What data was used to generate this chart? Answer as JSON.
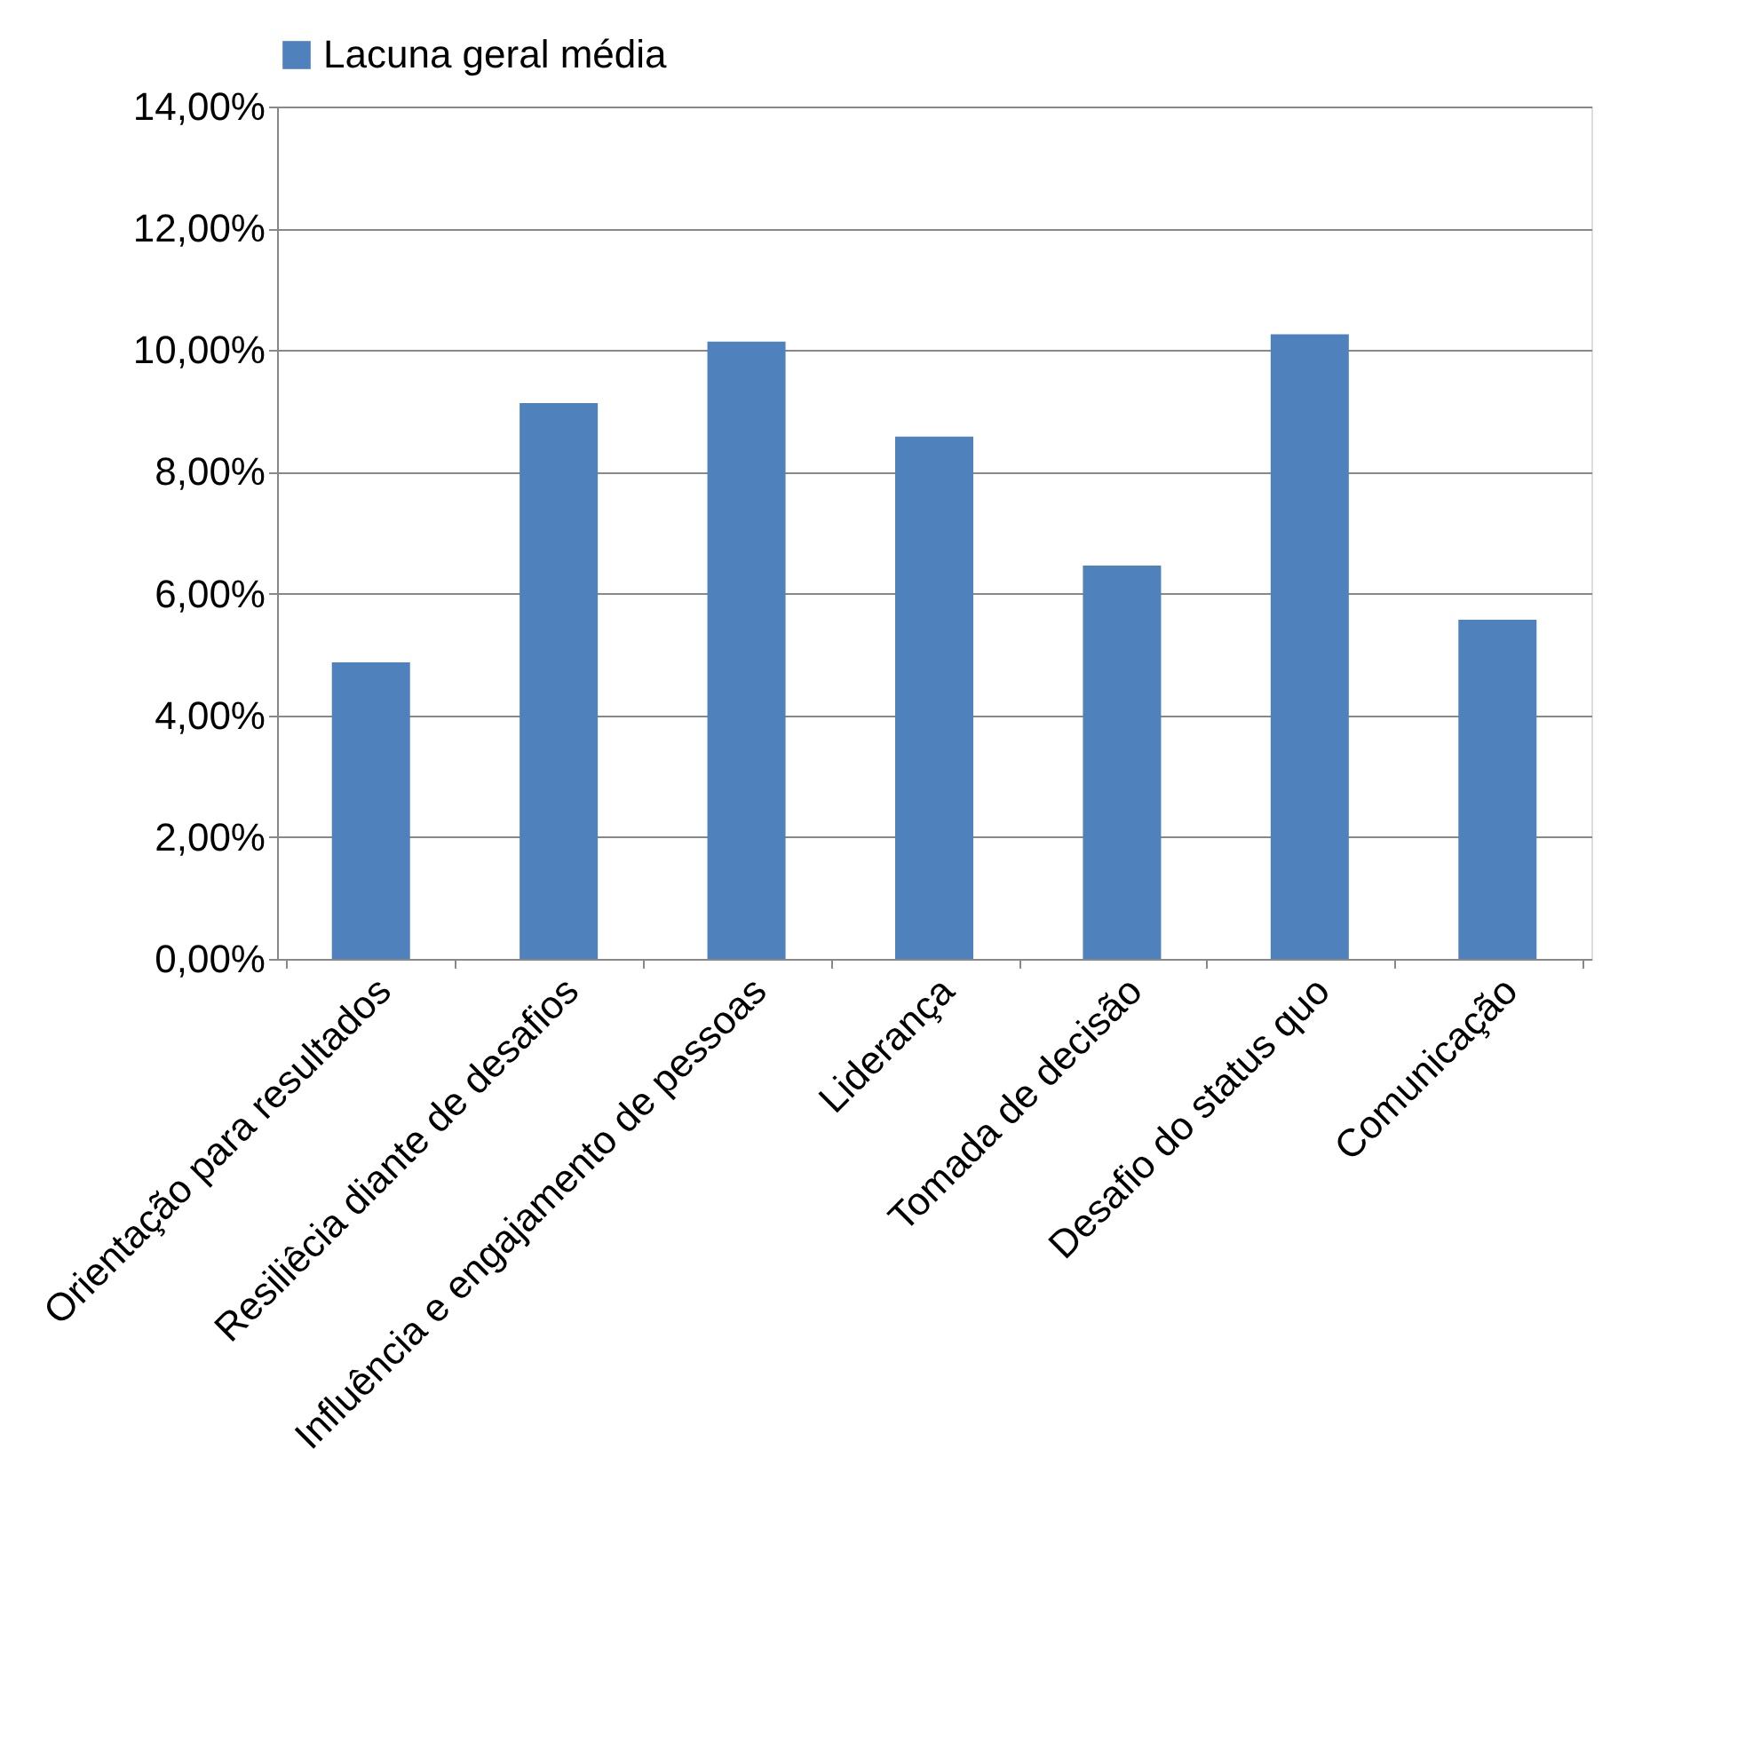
{
  "chart_data": {
    "type": "bar",
    "categories": [
      "Orientação para resultados",
      "Resiliêcia diante de desafios",
      "Influência e engajamento de pessoas",
      "Liderança",
      "Tomada de decisão",
      "Desafio do status quo",
      "Comunicação"
    ],
    "series": [
      {
        "name": "Lacuna geral média",
        "color": "#4f81bd",
        "values": [
          4.87,
          9.13,
          10.14,
          8.58,
          6.46,
          10.26,
          5.57
        ]
      }
    ],
    "ylim": [
      0,
      14
    ],
    "yticks": [
      {
        "value": 0,
        "label": "0,00%"
      },
      {
        "value": 2,
        "label": "2,00%"
      },
      {
        "value": 4,
        "label": "4,00%"
      },
      {
        "value": 6,
        "label": "6,00%"
      },
      {
        "value": 8,
        "label": "8,00%"
      },
      {
        "value": 10,
        "label": "10,00%"
      },
      {
        "value": 12,
        "label": "12,00%"
      },
      {
        "value": 14,
        "label": "14,00%"
      }
    ],
    "grid": "y",
    "legend": "top"
  }
}
